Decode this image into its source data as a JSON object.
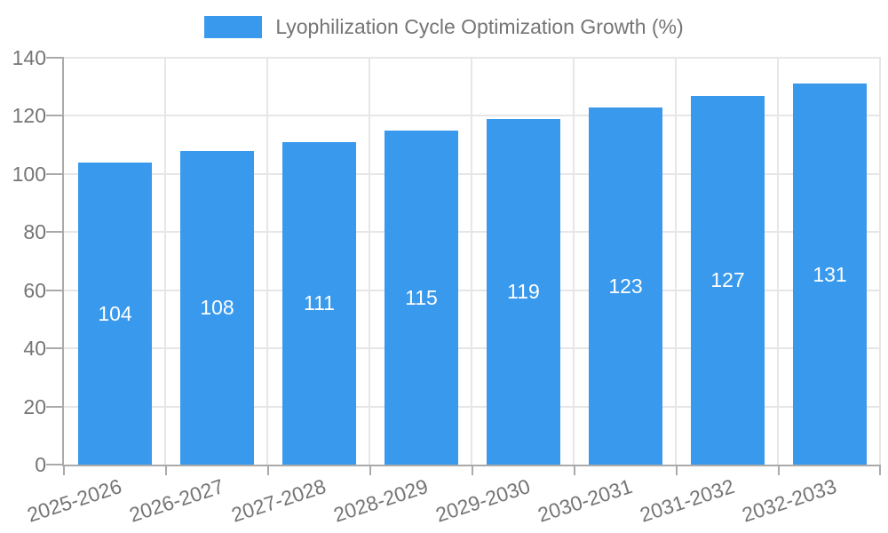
{
  "chart_data": {
    "type": "bar",
    "title": "Lyophilization Cycle Optimization Growth (%)",
    "series_name": "Lyophilization Cycle Optimization Growth (%)",
    "categories": [
      "2025-2026",
      "2026-2027",
      "2027-2028",
      "2028-2029",
      "2029-2030",
      "2030-2031",
      "2031-2032",
      "2032-2033"
    ],
    "values": [
      104,
      108,
      111,
      115,
      119,
      123,
      127,
      131
    ],
    "xlabel": "",
    "ylabel": "",
    "ylim": [
      0,
      140
    ],
    "yticks": [
      0,
      20,
      40,
      60,
      80,
      100,
      120,
      140
    ],
    "grid": true,
    "legend_position": "top",
    "bar_color": "#3999ec",
    "value_label_color": "#ffffff",
    "text_color": "#757575",
    "axis_color": "#aaaaaa",
    "grid_color": "#e6e6e6",
    "background_color": "#ffffff"
  }
}
